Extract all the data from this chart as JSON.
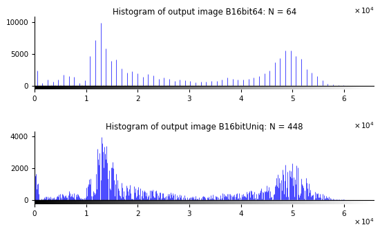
{
  "title1": "Histogram of output image B16bit64: N = 64",
  "title2": "Histogram of output image B16bitUniq: N = 448",
  "xmax": 65536,
  "ylabel1_max": 10000,
  "ylabel2_max": 4000,
  "n_bins1": 64,
  "n_bins2": 448,
  "bar_color": "#0000ff",
  "background_color": "#ffffff",
  "title_fontsize": 8.5,
  "tick_fontsize": 7.5,
  "scale_text": "x 10⁴"
}
